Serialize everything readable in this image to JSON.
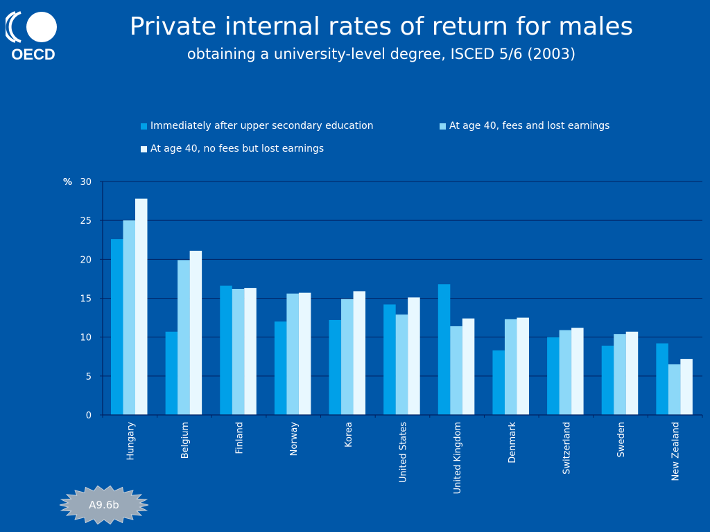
{
  "logo": {
    "text": "OECD"
  },
  "header": {
    "title": "Private internal rates of return for males",
    "subtitle": "obtaining a university-level degree, ISCED 5/6 (2003)"
  },
  "badge": {
    "label": "A9.6b"
  },
  "chart_data": {
    "type": "bar",
    "title": "Private internal rates of return for males",
    "subtitle": "obtaining a university-level degree, ISCED 5/6 (2003)",
    "xlabel": "",
    "ylabel": "%",
    "ylim": [
      0,
      30
    ],
    "yticks": [
      0,
      5,
      10,
      15,
      20,
      25,
      30
    ],
    "grid": true,
    "legend_position": "top",
    "categories": [
      "Hungary",
      "Belgium",
      "Finland",
      "Norway",
      "Korea",
      "United States",
      "United Kingdom",
      "Denmark",
      "Switzerland",
      "Sweden",
      "New Zealand"
    ],
    "series": [
      {
        "name": "Immediately after upper secondary education",
        "color": "#00A0E8",
        "values": [
          22.6,
          10.7,
          16.6,
          12.0,
          12.2,
          14.2,
          16.8,
          8.3,
          10.0,
          8.9,
          9.2
        ]
      },
      {
        "name": "At age 40, fees and lost earnings",
        "color": "#8CD8F8",
        "values": [
          25.0,
          19.9,
          16.2,
          15.6,
          14.9,
          12.9,
          11.4,
          12.3,
          10.9,
          10.4,
          6.5
        ]
      },
      {
        "name": "At age 40, no fees but lost earnings",
        "color": "#E8F8FF",
        "values": [
          27.8,
          21.1,
          16.3,
          15.7,
          15.9,
          15.1,
          12.4,
          12.5,
          11.2,
          10.7,
          7.2
        ]
      }
    ]
  }
}
